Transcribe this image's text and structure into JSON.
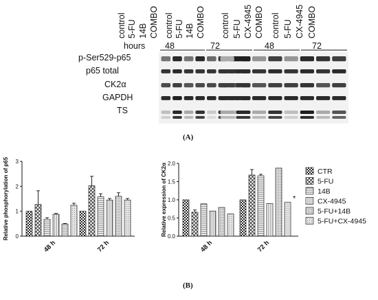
{
  "panels": {
    "a_label": "(A)",
    "b_label": "(B)"
  },
  "blot": {
    "hours_label": "hours",
    "left_lanes": [
      "control",
      "5-FU",
      "14B",
      "COMBO",
      "control",
      "5-FU",
      "14B",
      "COMBO"
    ],
    "right_lanes": [
      "control",
      "5-FU",
      "CX-4945",
      "COMBO",
      "control",
      "5-FU",
      "CX-4945",
      "COMBO"
    ],
    "timepoints": [
      "48",
      "72"
    ],
    "rows": [
      "p-Ser529-p65",
      "p65 total",
      "CK2α",
      "GAPDH",
      "TS"
    ]
  },
  "legend": [
    "CTR",
    "5-FU",
    "14B",
    "CX-4945",
    "5-FU+14B",
    "5-FU+CX-4945"
  ],
  "chart_data": [
    {
      "type": "bar",
      "ylabel": "Relative phosphorylation of p65",
      "categories": [
        "48 h",
        "72 h"
      ],
      "ylim": [
        0,
        3
      ],
      "yticks": [
        "0",
        "1",
        "2",
        "3"
      ],
      "series": [
        {
          "name": "CTR",
          "values": [
            1.0,
            1.0
          ],
          "errors": [
            0,
            0
          ]
        },
        {
          "name": "5-FU",
          "values": [
            1.27,
            2.02
          ],
          "errors": [
            0.55,
            0.38
          ]
        },
        {
          "name": "14B",
          "values": [
            0.68,
            1.58
          ],
          "errors": [
            0.06,
            0.12
          ]
        },
        {
          "name": "5-FU+14B",
          "values": [
            0.88,
            1.45
          ],
          "errors": [
            0.03,
            0.06
          ]
        },
        {
          "name": "",
          "values": [
            0.49,
            1.6
          ],
          "errors": [
            0.02,
            0.14
          ]
        },
        {
          "name": "",
          "values": [
            1.24,
            1.45
          ],
          "errors": [
            0.08,
            0.06
          ]
        }
      ]
    },
    {
      "type": "bar",
      "ylabel": "Relative expression of CK2α",
      "categories": [
        "48 h",
        "72 h"
      ],
      "ylim": [
        0,
        2.0
      ],
      "yticks": [
        "0.0",
        "0.5",
        "1.0",
        "1.5",
        "2.0"
      ],
      "annotation": "*",
      "series": [
        {
          "name": "CTR",
          "values": [
            1.0,
            1.0
          ],
          "errors": [
            0,
            0
          ]
        },
        {
          "name": "5-FU",
          "values": [
            0.66,
            1.68
          ],
          "errors": [
            0.06,
            0.15
          ]
        },
        {
          "name": "14B",
          "values": [
            0.89,
            1.66
          ],
          "errors": [
            0.0,
            0.04
          ]
        },
        {
          "name": "CX-4945",
          "values": [
            0.69,
            0.9
          ],
          "errors": [
            0.0,
            0.0
          ]
        },
        {
          "name": "5-FU+14B",
          "values": [
            0.79,
            1.87
          ],
          "errors": [
            0.0,
            0.0
          ]
        },
        {
          "name": "5-FU+CX-4945",
          "values": [
            0.61,
            0.93
          ],
          "errors": [
            0.0,
            0.0
          ]
        }
      ]
    }
  ],
  "style": {
    "bar_fill": "#d9d9d9",
    "ink": "#111111",
    "blot_bg": "#f1f1f1",
    "band_dark": "#1a1a1a"
  }
}
